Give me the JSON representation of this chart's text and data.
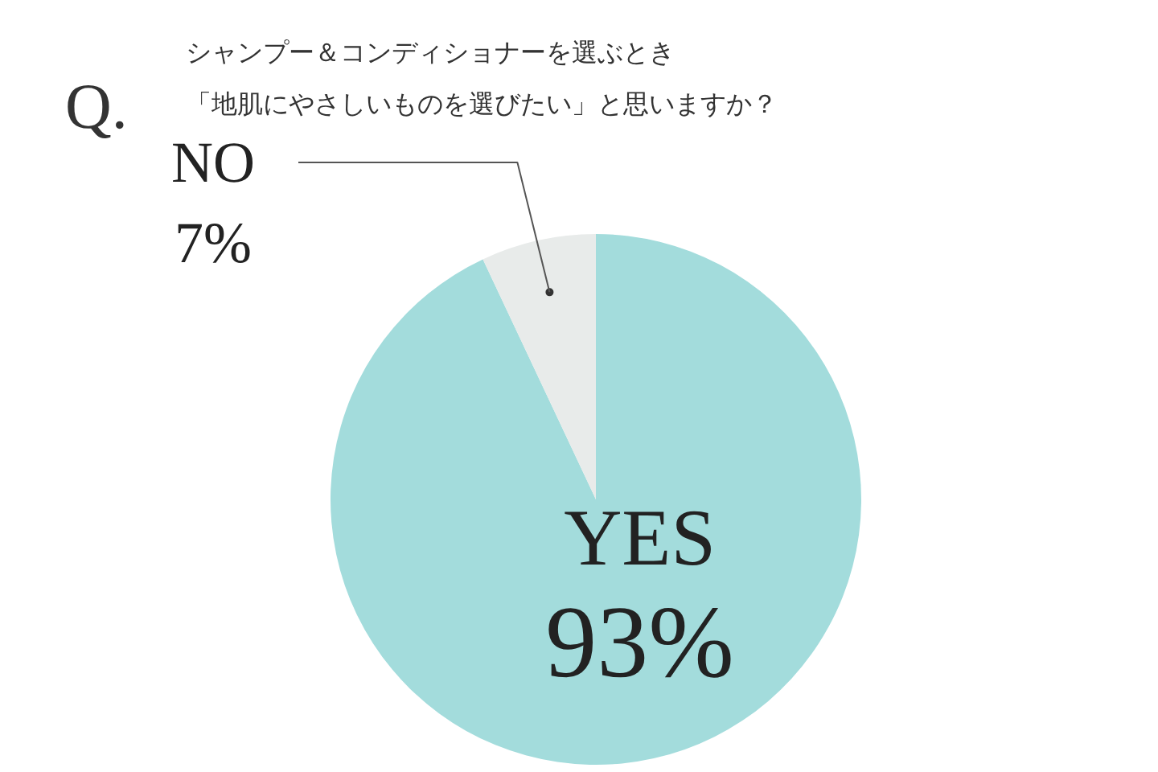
{
  "chart_data": {
    "type": "pie",
    "title": "Q.",
    "subtitle": "シャンプー＆コンディショナーを選ぶとき「地肌にやさしいものを選びたい」と思いますか？",
    "categories": [
      "YES",
      "NO"
    ],
    "values": [
      93,
      7
    ],
    "colors": [
      "#a3dcdc",
      "#e8ebea"
    ],
    "value_labels": [
      "93%",
      "7%"
    ]
  }
}
